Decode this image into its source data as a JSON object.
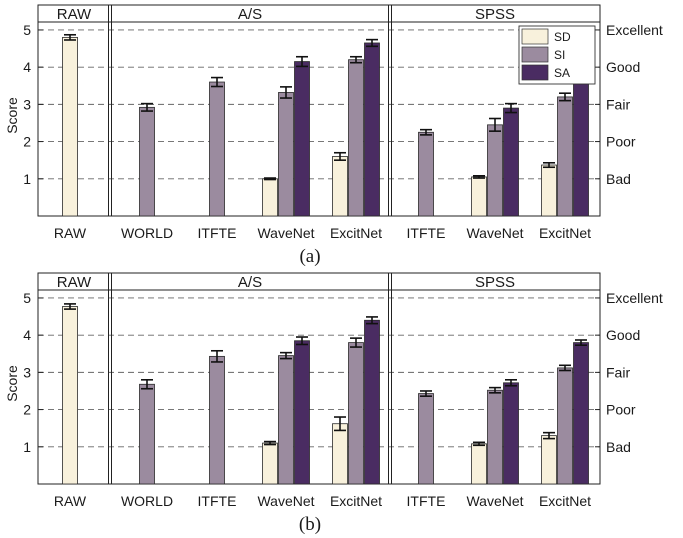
{
  "figure": {
    "captions": [
      "(a)",
      "(b)"
    ]
  },
  "colors": {
    "SD": "#f8f1dc",
    "SI": "#9b8b9f",
    "SA": "#4a2c62",
    "grid": "#666666",
    "frame": "#222222"
  },
  "chart_data": [
    {
      "type": "bar",
      "panel": "(a)",
      "ylabel": "Score",
      "ylim": [
        0,
        5.2
      ],
      "yticks": [
        1,
        2,
        3,
        4,
        5
      ],
      "right_axis_labels": [
        "Bad",
        "Poor",
        "Fair",
        "Good",
        "Excellent"
      ],
      "right_axis_values": [
        1,
        2,
        3,
        4,
        5
      ],
      "grid": "horizontal dashed",
      "legend": {
        "placement": "top-right of SPSS panel",
        "entries": [
          "SD",
          "SI",
          "SA"
        ]
      },
      "groups": [
        {
          "name": "RAW",
          "categories": [
            "RAW"
          ]
        },
        {
          "name": "A/S",
          "categories": [
            "WORLD",
            "ITFTE",
            "WaveNet",
            "ExcitNet"
          ]
        },
        {
          "name": "SPSS",
          "categories": [
            "ITFTE",
            "WaveNet",
            "ExcitNet"
          ]
        }
      ],
      "bars": [
        {
          "group": 0,
          "cat": 0,
          "series": "SD",
          "value": 4.8,
          "err": 0.07
        },
        {
          "group": 1,
          "cat": 0,
          "series": "SI",
          "value": 2.92,
          "err": 0.1
        },
        {
          "group": 1,
          "cat": 1,
          "series": "SI",
          "value": 3.6,
          "err": 0.12
        },
        {
          "group": 1,
          "cat": 2,
          "series": "SD",
          "value": 1.0,
          "err": 0.02
        },
        {
          "group": 1,
          "cat": 2,
          "series": "SI",
          "value": 3.32,
          "err": 0.15
        },
        {
          "group": 1,
          "cat": 2,
          "series": "SA",
          "value": 4.15,
          "err": 0.13
        },
        {
          "group": 1,
          "cat": 3,
          "series": "SD",
          "value": 1.6,
          "err": 0.1
        },
        {
          "group": 1,
          "cat": 3,
          "series": "SI",
          "value": 4.2,
          "err": 0.08
        },
        {
          "group": 1,
          "cat": 3,
          "series": "SA",
          "value": 4.65,
          "err": 0.09
        },
        {
          "group": 2,
          "cat": 0,
          "series": "SI",
          "value": 2.25,
          "err": 0.07
        },
        {
          "group": 2,
          "cat": 1,
          "series": "SD",
          "value": 1.05,
          "err": 0.03
        },
        {
          "group": 2,
          "cat": 1,
          "series": "SI",
          "value": 2.45,
          "err": 0.17
        },
        {
          "group": 2,
          "cat": 1,
          "series": "SA",
          "value": 2.9,
          "err": 0.12
        },
        {
          "group": 2,
          "cat": 2,
          "series": "SD",
          "value": 1.37,
          "err": 0.06
        },
        {
          "group": 2,
          "cat": 2,
          "series": "SI",
          "value": 3.2,
          "err": 0.1
        },
        {
          "group": 2,
          "cat": 2,
          "series": "SA",
          "value": 3.8,
          "err": 0.07
        }
      ]
    },
    {
      "type": "bar",
      "panel": "(b)",
      "ylabel": "Score",
      "ylim": [
        0,
        5.2
      ],
      "yticks": [
        1,
        2,
        3,
        4,
        5
      ],
      "right_axis_labels": [
        "Bad",
        "Poor",
        "Fair",
        "Good",
        "Excellent"
      ],
      "right_axis_values": [
        1,
        2,
        3,
        4,
        5
      ],
      "grid": "horizontal dashed",
      "groups": [
        {
          "name": "RAW",
          "categories": [
            "RAW"
          ]
        },
        {
          "name": "A/S",
          "categories": [
            "WORLD",
            "ITFTE",
            "WaveNet",
            "ExcitNet"
          ]
        },
        {
          "name": "SPSS",
          "categories": [
            "ITFTE",
            "WaveNet",
            "ExcitNet"
          ]
        }
      ],
      "bars": [
        {
          "group": 0,
          "cat": 0,
          "series": "SD",
          "value": 4.77,
          "err": 0.07
        },
        {
          "group": 1,
          "cat": 0,
          "series": "SI",
          "value": 2.68,
          "err": 0.12
        },
        {
          "group": 1,
          "cat": 1,
          "series": "SI",
          "value": 3.43,
          "err": 0.15
        },
        {
          "group": 1,
          "cat": 2,
          "series": "SD",
          "value": 1.1,
          "err": 0.04
        },
        {
          "group": 1,
          "cat": 2,
          "series": "SI",
          "value": 3.45,
          "err": 0.08
        },
        {
          "group": 1,
          "cat": 2,
          "series": "SA",
          "value": 3.85,
          "err": 0.1
        },
        {
          "group": 1,
          "cat": 3,
          "series": "SD",
          "value": 1.62,
          "err": 0.18
        },
        {
          "group": 1,
          "cat": 3,
          "series": "SI",
          "value": 3.8,
          "err": 0.12
        },
        {
          "group": 1,
          "cat": 3,
          "series": "SA",
          "value": 4.4,
          "err": 0.09
        },
        {
          "group": 2,
          "cat": 0,
          "series": "SI",
          "value": 2.43,
          "err": 0.07
        },
        {
          "group": 2,
          "cat": 1,
          "series": "SD",
          "value": 1.08,
          "err": 0.04
        },
        {
          "group": 2,
          "cat": 1,
          "series": "SI",
          "value": 2.52,
          "err": 0.07
        },
        {
          "group": 2,
          "cat": 1,
          "series": "SA",
          "value": 2.72,
          "err": 0.08
        },
        {
          "group": 2,
          "cat": 2,
          "series": "SD",
          "value": 1.3,
          "err": 0.08
        },
        {
          "group": 2,
          "cat": 2,
          "series": "SI",
          "value": 3.12,
          "err": 0.07
        },
        {
          "group": 2,
          "cat": 2,
          "series": "SA",
          "value": 3.8,
          "err": 0.07
        }
      ]
    }
  ]
}
